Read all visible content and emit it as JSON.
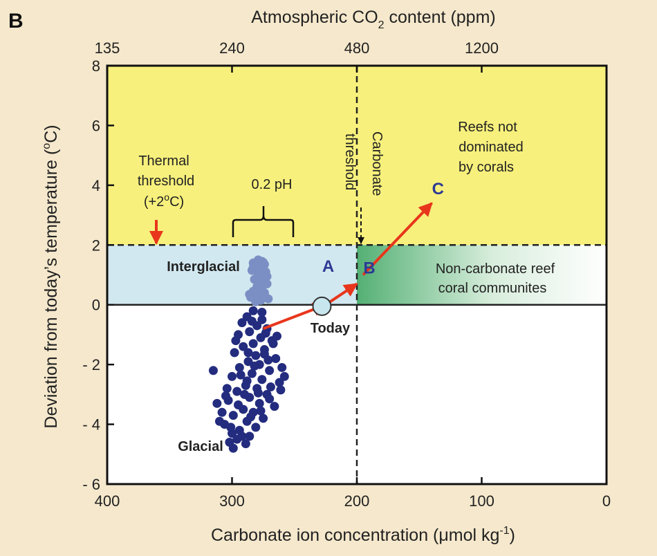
{
  "panel_label": "B",
  "chart_data": {
    "type": "scatter",
    "title": "",
    "xlabel": "Carbonate ion concentration (μmol kg-1)",
    "xlabel_parts": {
      "main": "Carbonate ion concentration (",
      "mu": "μ",
      "mid": "mol kg",
      "sup": "-1",
      "end": ")"
    },
    "ylabel": "Deviation from today's temperature (oC)",
    "ylabel_parts": {
      "main": "Deviation from today’s temperature (",
      "sup": "o",
      "end": "C)"
    },
    "top_axis_label": "Atmospheric CO2 content (ppm)",
    "top_axis_parts": {
      "main": "Atmospheric CO",
      "sub": "2",
      "end": " content (ppm)"
    },
    "xlim": [
      400,
      0
    ],
    "ylim": [
      -6,
      8
    ],
    "x_ticks": [
      400,
      300,
      200,
      100,
      0
    ],
    "y_ticks": [
      8,
      6,
      4,
      2,
      0,
      -2,
      -4,
      -6
    ],
    "y_tick_labels": [
      "8",
      "6",
      "4",
      "2",
      "0",
      "- 2",
      "- 4",
      "- 6"
    ],
    "top_ticks": [
      {
        "label": "135",
        "x": 400
      },
      {
        "label": "240",
        "x": 300
      },
      {
        "label": "480",
        "x": 200
      },
      {
        "label": "1200",
        "x": 100
      }
    ],
    "regions": [
      {
        "name": "Reefs not dominated by corals",
        "x_range": [
          400,
          0
        ],
        "y_range": [
          2,
          8
        ],
        "color": "#f7f07c"
      },
      {
        "name": "Interglacial band",
        "x_range": [
          400,
          200
        ],
        "y_range": [
          0,
          2
        ],
        "color": "#d2e8f0"
      },
      {
        "name": "Non-carbonate reef coral communites",
        "x_range": [
          200,
          0
        ],
        "y_range": [
          0,
          2
        ],
        "color": "#54b074"
      }
    ],
    "thresholds": [
      {
        "type": "horizontal",
        "y": 2,
        "style": "dashed"
      },
      {
        "type": "vertical",
        "x": 200,
        "style": "dashed"
      },
      {
        "type": "horizontal",
        "y": 0,
        "style": "solid"
      }
    ],
    "series": [
      {
        "name": "Interglacial",
        "color": "#7b8fc4",
        "points": [
          [
            279,
            1.5
          ],
          [
            276,
            1.45
          ],
          [
            283,
            1.4
          ],
          [
            274,
            1.35
          ],
          [
            280,
            1.3
          ],
          [
            277,
            1.2
          ],
          [
            284,
            1.15
          ],
          [
            273,
            1.1
          ],
          [
            279,
            1.0
          ],
          [
            275,
            0.9
          ],
          [
            282,
            0.85
          ],
          [
            277,
            0.75
          ],
          [
            272,
            0.7
          ],
          [
            280,
            0.6
          ],
          [
            276,
            0.5
          ],
          [
            283,
            0.45
          ],
          [
            274,
            0.4
          ],
          [
            279,
            0.3
          ],
          [
            285,
            0.25
          ],
          [
            271,
            0.2
          ],
          [
            277,
            0.15
          ],
          [
            281,
            0.1
          ],
          [
            276,
            1.05
          ],
          [
            278,
            0.55
          ],
          [
            283,
            1.25
          ],
          [
            272,
            0.95
          ],
          [
            286,
            0.35
          ],
          [
            275,
            1.42
          ]
        ]
      },
      {
        "name": "Glacial",
        "color": "#232c7e",
        "points": [
          [
            283,
            -0.2
          ],
          [
            288,
            -0.4
          ],
          [
            276,
            -0.5
          ],
          [
            292,
            -0.6
          ],
          [
            280,
            -0.7
          ],
          [
            272,
            -0.8
          ],
          [
            286,
            -0.9
          ],
          [
            295,
            -1.0
          ],
          [
            277,
            -1.1
          ],
          [
            268,
            -1.2
          ],
          [
            283,
            -1.3
          ],
          [
            291,
            -1.4
          ],
          [
            274,
            -1.5
          ],
          [
            298,
            -1.6
          ],
          [
            281,
            -1.7
          ],
          [
            265,
            -1.8
          ],
          [
            287,
            -1.9
          ],
          [
            278,
            -2.0
          ],
          [
            294,
            -2.1
          ],
          [
            270,
            -2.2
          ],
          [
            284,
            -2.3
          ],
          [
            300,
            -2.4
          ],
          [
            276,
            -2.5
          ],
          [
            262,
            -2.6
          ],
          [
            289,
            -2.7
          ],
          [
            280,
            -2.8
          ],
          [
            296,
            -2.9
          ],
          [
            272,
            -3.0
          ],
          [
            286,
            -3.1
          ],
          [
            303,
            -3.2
          ],
          [
            278,
            -3.3
          ],
          [
            266,
            -3.4
          ],
          [
            291,
            -3.5
          ],
          [
            283,
            -3.6
          ],
          [
            299,
            -3.7
          ],
          [
            275,
            -3.8
          ],
          [
            288,
            -3.9
          ],
          [
            306,
            -4.0
          ],
          [
            281,
            -4.1
          ],
          [
            294,
            -4.2
          ],
          [
            300,
            -4.3
          ],
          [
            286,
            -4.4
          ],
          [
            296,
            -4.5
          ],
          [
            302,
            -4.6
          ],
          [
            299,
            -4.8
          ],
          [
            310,
            -3.9
          ],
          [
            308,
            -3.6
          ],
          [
            304,
            -2.8
          ],
          [
            260,
            -2.1
          ],
          [
            267,
            -1.3
          ],
          [
            273,
            -0.95
          ],
          [
            258,
            -2.4
          ],
          [
            290,
            -3.0
          ],
          [
            282,
            -2.05
          ],
          [
            269,
            -2.75
          ],
          [
            295,
            -3.35
          ],
          [
            277,
            -3.55
          ],
          [
            301,
            -4.1
          ],
          [
            289,
            -4.65
          ],
          [
            312,
            -3.3
          ],
          [
            264,
            -1.05
          ],
          [
            287,
            -1.6
          ],
          [
            279,
            -2.95
          ],
          [
            293,
            -2.35
          ],
          [
            271,
            -1.85
          ],
          [
            284,
            -0.55
          ],
          [
            276,
            -0.25
          ],
          [
            297,
            -1.2
          ],
          [
            315,
            -2.2
          ],
          [
            261,
            -2.85
          ],
          [
            285,
            -3.75
          ],
          [
            292,
            -4.4
          ],
          [
            270,
            -3.15
          ],
          [
            305,
            -3.05
          ],
          [
            288,
            -2.55
          ],
          [
            274,
            -1.65
          ]
        ]
      }
    ],
    "today_point": {
      "label": "Today",
      "x": 228,
      "y": -0.05
    },
    "trajectory": [
      {
        "from": [
          275,
          -0.8
        ],
        "to": [
          225,
          0
        ]
      },
      {
        "from": [
          225,
          0
        ],
        "to": [
          200,
          0.7
        ]
      },
      {
        "from": [
          195,
          1.0
        ],
        "to": [
          140,
          3.4
        ]
      }
    ],
    "point_labels": [
      {
        "label": "A",
        "x": 223,
        "y": 1.1
      },
      {
        "label": "B",
        "x": 190,
        "y": 1.05
      },
      {
        "label": "C",
        "x": 135,
        "y": 3.7
      }
    ],
    "annotations": {
      "thermal_threshold": [
        "Thermal",
        "threshold",
        "(+2",
        "o",
        "C)"
      ],
      "ph_label": "0.2 pH",
      "carbonate_threshold": [
        "Carbonate",
        "threshold"
      ],
      "reefs_not_dominated": [
        "Reefs not",
        "dominated",
        "by corals"
      ],
      "non_carbonate": [
        "Non-carbonate reef",
        "coral communites"
      ],
      "interglacial": "Interglacial",
      "glacial": "Glacial"
    }
  }
}
